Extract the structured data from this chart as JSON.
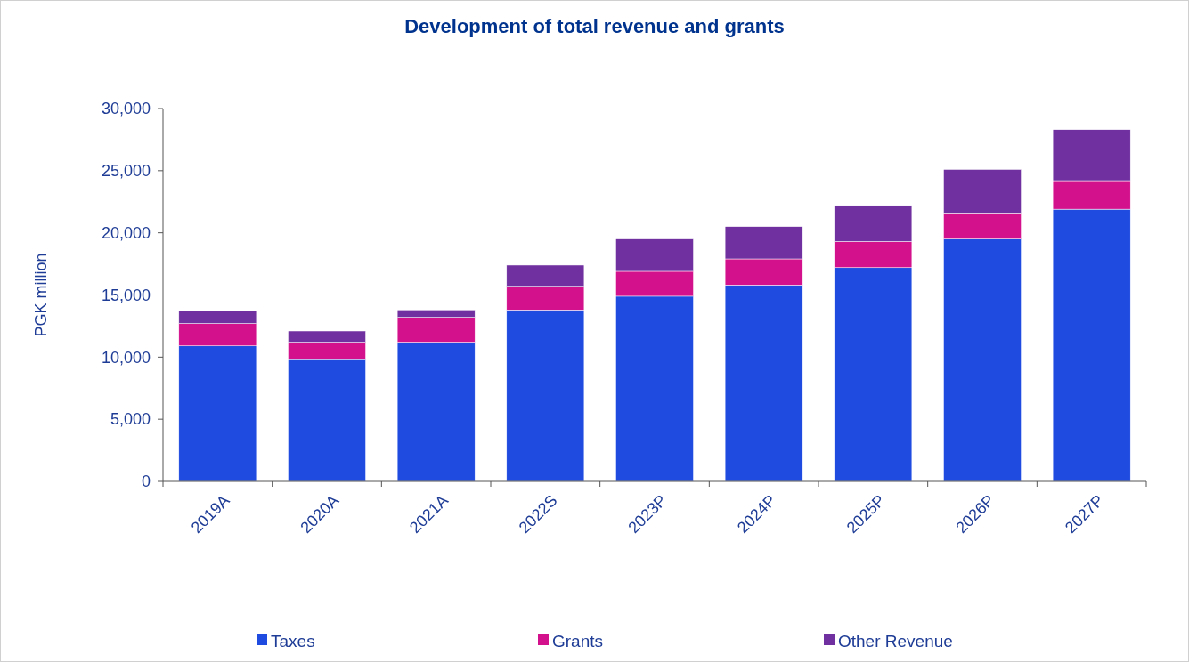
{
  "chart_data": {
    "type": "bar",
    "title": "Development of total revenue and grants",
    "ylabel": "PGK million",
    "categories": [
      "2019A",
      "2020A",
      "2021A",
      "2022S",
      "2023P",
      "2024P",
      "2025P",
      "2026P",
      "2027P"
    ],
    "stacked": true,
    "series": [
      {
        "name": "Taxes",
        "color": "#1f4be0",
        "values": [
          10900,
          9800,
          11200,
          13800,
          14900,
          15800,
          17200,
          19500,
          21900
        ]
      },
      {
        "name": "Grants",
        "color": "#d4118c",
        "values": [
          1800,
          1400,
          2000,
          1900,
          2000,
          2100,
          2100,
          2100,
          2300
        ]
      },
      {
        "name": "Other Revenue",
        "color": "#7030a0",
        "values": [
          1000,
          900,
          600,
          1700,
          2600,
          2600,
          2900,
          3500,
          4100
        ]
      }
    ],
    "ylim": [
      0,
      30000
    ],
    "yticks": [
      {
        "value": 0,
        "label": "0"
      },
      {
        "value": 5000,
        "label": "5,000"
      },
      {
        "value": 10000,
        "label": "10,000"
      },
      {
        "value": 15000,
        "label": "15,000"
      },
      {
        "value": 20000,
        "label": "20,000"
      },
      {
        "value": 25000,
        "label": "25,000"
      },
      {
        "value": 30000,
        "label": "30,000"
      }
    ],
    "grid": false,
    "legend": "bottom"
  }
}
